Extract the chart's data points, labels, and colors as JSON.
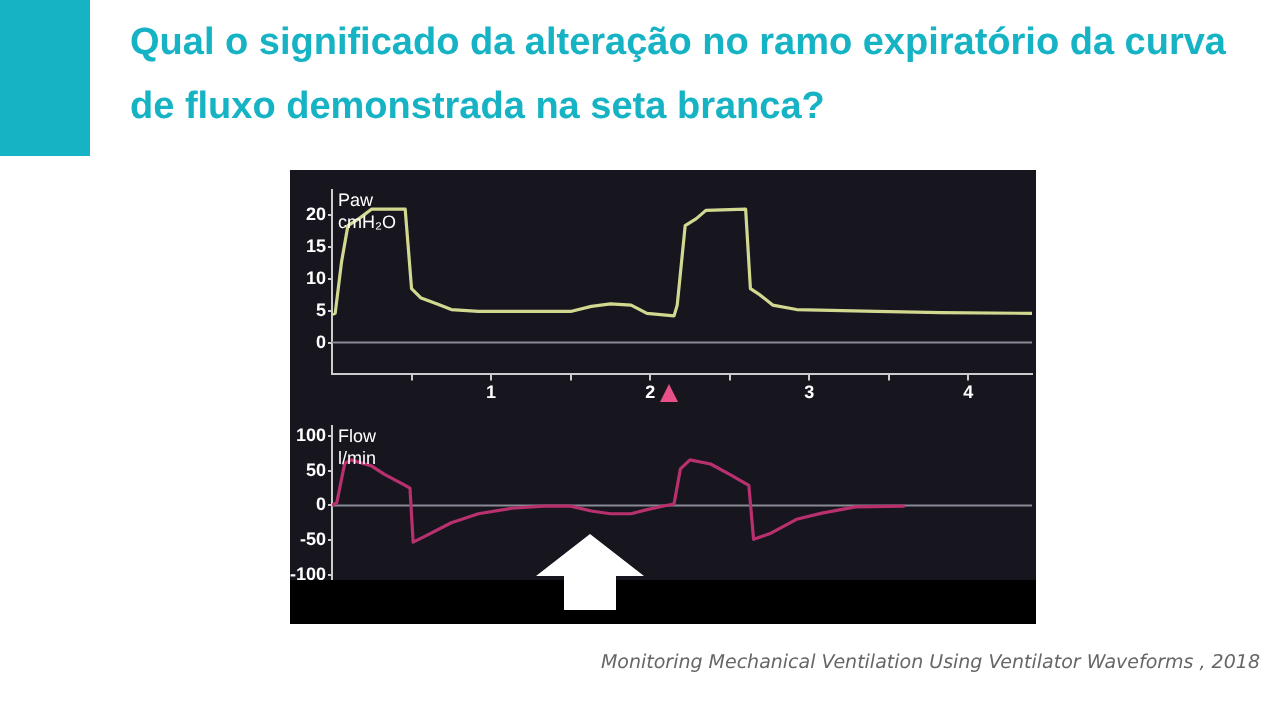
{
  "chart_data": [
    {
      "type": "line",
      "title": "Qual o significado da alteração no ramo expiratório da curva de fluxo demonstrada na seta branca?",
      "ylabel": "Paw cmH₂O",
      "marker": "none",
      "xlim": [
        0,
        4.4
      ],
      "ylim": [
        -5,
        24
      ],
      "xticks": [
        {
          "value": 0.5,
          "label": null
        },
        1,
        {
          "value": 1.5,
          "label": null
        },
        2,
        {
          "value": 2.5,
          "label": null
        },
        3,
        {
          "value": 3.5,
          "label": null
        },
        4
      ],
      "yticks": [
        0,
        5,
        10,
        15,
        20
      ],
      "ref_lines": [
        {
          "axis": "y",
          "value": 0,
          "color": "#8a8a96"
        }
      ],
      "series": [
        {
          "color": "#d2d88f",
          "x": [
            0,
            0.02,
            0.06,
            0.1,
            0.17,
            0.25,
            0.46,
            0.5,
            0.56,
            0.67,
            0.75,
            0.92,
            1.5,
            1.63,
            1.75,
            1.88,
            1.98,
            2.15,
            2.17,
            2.22,
            2.29,
            2.35,
            2.6,
            2.63,
            2.69,
            2.77,
            2.92,
            3.42,
            3.83,
            4.4
          ],
          "values": [
            4.4,
            4.6,
            12.7,
            18.4,
            19.5,
            21,
            21,
            8.5,
            7,
            6,
            5.2,
            4.9,
            4.9,
            5.7,
            6.1,
            5.9,
            4.6,
            4.2,
            5.9,
            18.4,
            19.5,
            20.8,
            21,
            8.5,
            7.5,
            5.9,
            5.2,
            4.9,
            4.7,
            4.6
          ]
        }
      ]
    },
    {
      "type": "line",
      "ylabel": "Flow l/min",
      "marker": "none",
      "tick_labels": "y",
      "xlim": [
        0,
        4.4
      ],
      "ylim": [
        -120,
        115
      ],
      "xticks": [
        {
          "value": 0.5,
          "label": null
        },
        {
          "value": 1,
          "label": null
        },
        {
          "value": 1.5,
          "label": null
        },
        {
          "value": 2,
          "label": null
        },
        {
          "value": 2.5,
          "label": null
        },
        {
          "value": 3,
          "label": null
        },
        {
          "value": 3.5,
          "label": null
        },
        {
          "value": 4,
          "label": null
        }
      ],
      "yticks": [
        -100,
        -50,
        0,
        50,
        100
      ],
      "ref_lines": [
        {
          "axis": "y",
          "value": 0,
          "color": "#8a8a96"
        }
      ],
      "annotations": [
        "Monitoring Mechanical Ventilation Using Ventilator Waveforms , 2018"
      ],
      "series": [
        {
          "color": "#b8306e",
          "x": [
            0,
            0.03,
            0.08,
            0.12,
            0.25,
            0.33,
            0.46,
            0.49,
            0.51,
            0.58,
            0.75,
            0.92,
            1.13,
            1.33,
            1.5,
            1.63,
            1.75,
            1.88,
            1.98,
            2.1,
            2.15,
            2.19,
            2.25,
            2.38,
            2.5,
            2.62,
            2.65,
            2.75,
            2.92,
            3.08,
            3.29,
            3.6
          ],
          "values": [
            0,
            4,
            61,
            66,
            57,
            45,
            29,
            25,
            -53,
            -45,
            -25,
            -12,
            -4,
            -1,
            -1,
            -8,
            -12,
            -12,
            -6,
            0,
            2,
            53,
            66,
            60,
            45,
            29,
            -49,
            -41,
            -20,
            -11,
            -2,
            -1
          ]
        }
      ]
    }
  ]
}
